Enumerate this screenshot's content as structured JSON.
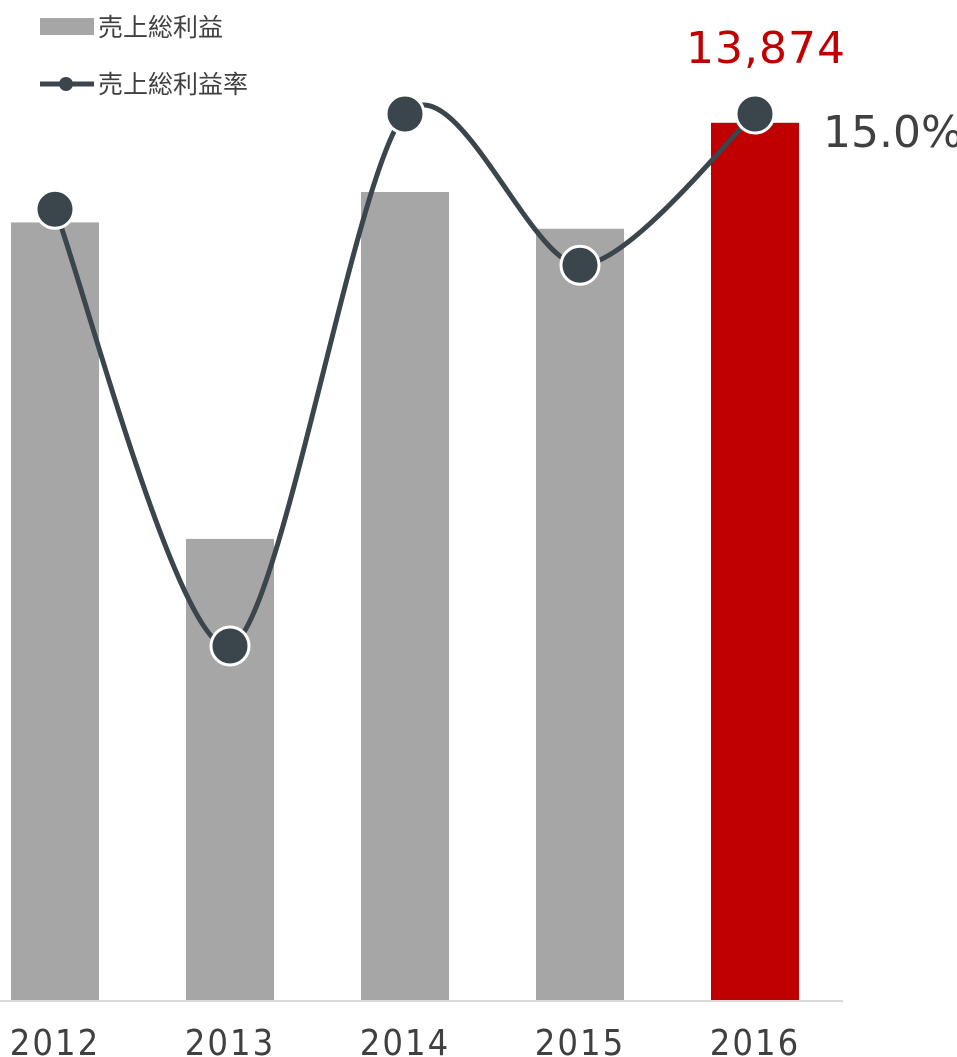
{
  "chart_data": {
    "type": "bar",
    "categories": [
      "2012",
      "2013",
      "2014",
      "2015",
      "2016"
    ],
    "series": [
      {
        "name": "売上総利益",
        "type": "bar",
        "values": [
          12300,
          7300,
          12780,
          12200,
          13874
        ],
        "colors": [
          "#a6a6a6",
          "#a6a6a6",
          "#a6a6a6",
          "#a6a6a6",
          "#c00000"
        ],
        "data_labels": [
          null,
          null,
          null,
          null,
          "13,874"
        ]
      },
      {
        "name": "売上総利益率",
        "type": "line",
        "values": [
          13.3,
          5.5,
          15.0,
          12.3,
          15.0
        ],
        "color": "#3a464c",
        "data_labels": [
          null,
          null,
          null,
          null,
          "15.0%"
        ]
      }
    ],
    "highlight_color": "#c00000",
    "bar_color": "#a6a6a6",
    "legend_position": "top-left",
    "grid": false
  }
}
